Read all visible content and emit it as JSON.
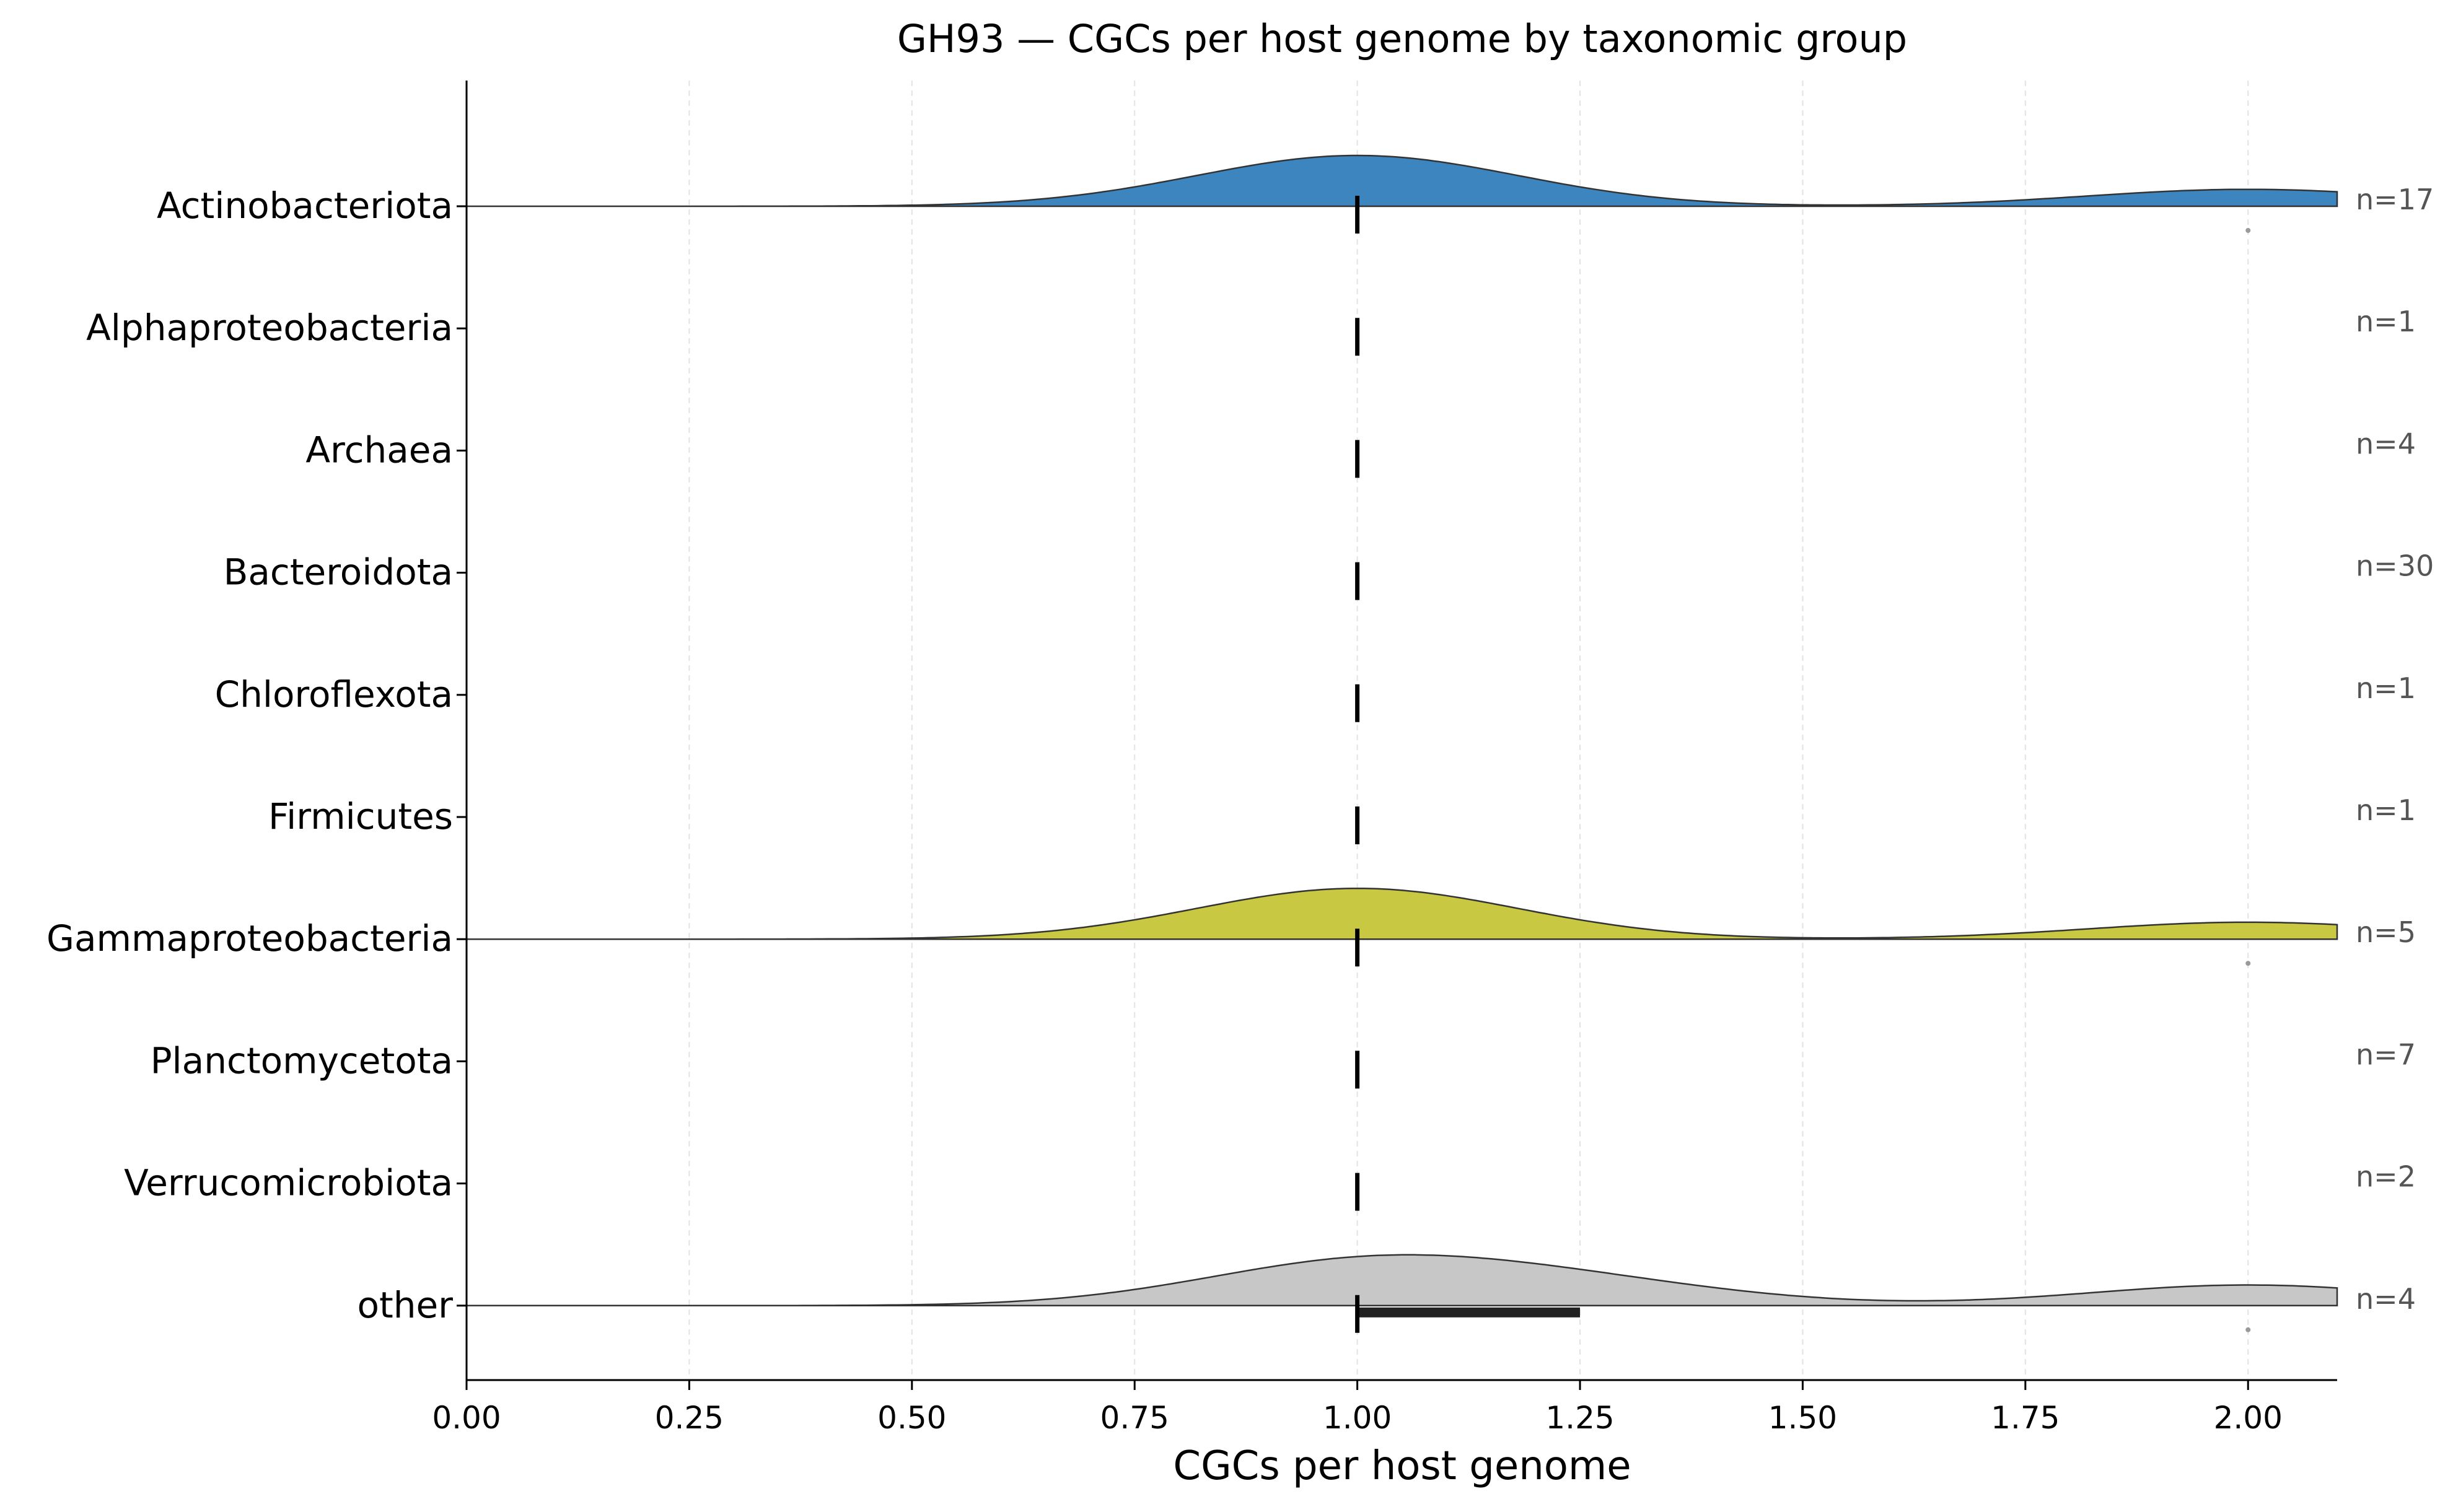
{
  "chart_data": {
    "type": "ridgeline",
    "title": "GH93 — CGCs per host genome by taxonomic group",
    "xlabel": "CGCs per host genome",
    "ylabel": "",
    "xlim": [
      0.0,
      2.1
    ],
    "x_ticks": [
      0.0,
      0.25,
      0.5,
      0.75,
      1.0,
      1.25,
      1.5,
      1.75,
      2.0
    ],
    "x_tick_labels": [
      "0.00",
      "0.25",
      "0.50",
      "0.75",
      "1.00",
      "1.25",
      "1.50",
      "1.75",
      "2.00"
    ],
    "grid": "x-axis dashed",
    "groups": [
      {
        "name": "Actinobacteriota",
        "n_label": "n=17",
        "median": 1.0,
        "q1": 1.0,
        "q3": 1.0,
        "outliers": [
          2.0
        ],
        "density": true,
        "color": "#3d85be"
      },
      {
        "name": "Alphaproteobacteria",
        "n_label": "n=1",
        "median": 1.0,
        "q1": 1.0,
        "q3": 1.0,
        "outliers": [],
        "density": false,
        "color": ""
      },
      {
        "name": "Archaea",
        "n_label": "n=4",
        "median": 1.0,
        "q1": 1.0,
        "q3": 1.0,
        "outliers": [],
        "density": false,
        "color": ""
      },
      {
        "name": "Bacteroidota",
        "n_label": "n=30",
        "median": 1.0,
        "q1": 1.0,
        "q3": 1.0,
        "outliers": [],
        "density": false,
        "color": ""
      },
      {
        "name": "Chloroflexota",
        "n_label": "n=1",
        "median": 1.0,
        "q1": 1.0,
        "q3": 1.0,
        "outliers": [],
        "density": false,
        "color": ""
      },
      {
        "name": "Firmicutes",
        "n_label": "n=1",
        "median": 1.0,
        "q1": 1.0,
        "q3": 1.0,
        "outliers": [],
        "density": false,
        "color": ""
      },
      {
        "name": "Gammaproteobacteria",
        "n_label": "n=5",
        "median": 1.0,
        "q1": 1.0,
        "q3": 1.0,
        "outliers": [
          2.0
        ],
        "density": true,
        "color": "#c8c843"
      },
      {
        "name": "Planctomycetota",
        "n_label": "n=7",
        "median": 1.0,
        "q1": 1.0,
        "q3": 1.0,
        "outliers": [],
        "density": false,
        "color": ""
      },
      {
        "name": "Verrucomicrobiota",
        "n_label": "n=2",
        "median": 1.0,
        "q1": 1.0,
        "q3": 1.0,
        "outliers": [],
        "density": false,
        "color": ""
      },
      {
        "name": "other",
        "n_label": "n=4",
        "median": 1.0,
        "q1": 1.0,
        "q3": 1.25,
        "outliers": [
          2.0
        ],
        "density": true,
        "color": "#c7c7c7"
      }
    ]
  }
}
